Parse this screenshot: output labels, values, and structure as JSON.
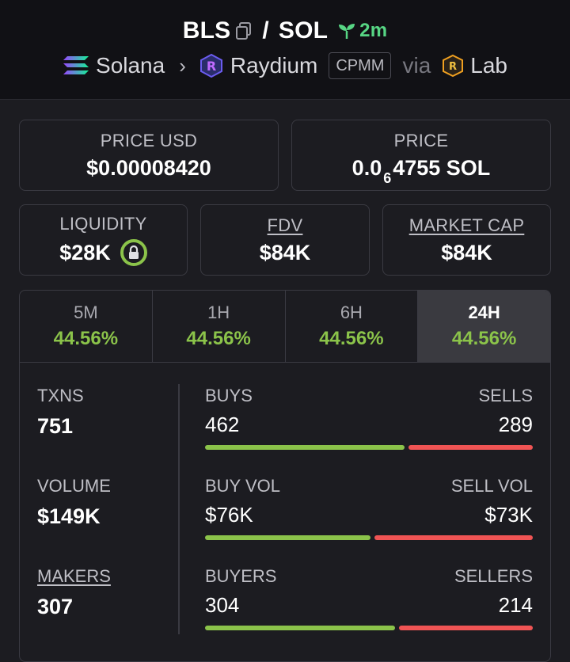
{
  "header": {
    "token": "BLS",
    "quote": "SOL",
    "age": "2m",
    "chain": "Solana",
    "dex": "Raydium",
    "pool_type": "CPMM",
    "via": "via",
    "launchpad": "Lab"
  },
  "prices": {
    "usd_label": "PRICE USD",
    "usd_value": "$0.00008420",
    "native_label": "PRICE",
    "native_prefix": "0.0",
    "native_zeros": "6",
    "native_suffix": "4755 SOL"
  },
  "market": {
    "liquidity_label": "LIQUIDITY",
    "liquidity_value": "$28K",
    "fdv_label": "FDV",
    "fdv_value": "$84K",
    "mcap_label": "MARKET CAP",
    "mcap_value": "$84K"
  },
  "tabs": [
    {
      "label": "5M",
      "value": "44.56%"
    },
    {
      "label": "1H",
      "value": "44.56%"
    },
    {
      "label": "6H",
      "value": "44.56%"
    },
    {
      "label": "24H",
      "value": "44.56%"
    }
  ],
  "metrics": {
    "txns_label": "TXNS",
    "txns_value": "751",
    "volume_label": "VOLUME",
    "volume_value": "$149K",
    "makers_label": "MAKERS",
    "makers_value": "307",
    "buys_label": "BUYS",
    "buys_value": "462",
    "sells_label": "SELLS",
    "sells_value": "289",
    "buy_vol_label": "BUY VOL",
    "buy_vol_value": "$76K",
    "sell_vol_label": "SELL VOL",
    "sell_vol_value": "$73K",
    "buyers_label": "BUYERS",
    "buyers_value": "304",
    "sellers_label": "SELLERS",
    "sellers_value": "214",
    "buys_ratio": 0.615,
    "buy_vol_ratio": 0.51,
    "buyers_ratio": 0.587
  },
  "colors": {
    "green": "#8bc34a",
    "red": "#f05454",
    "age_green": "#57d684"
  }
}
